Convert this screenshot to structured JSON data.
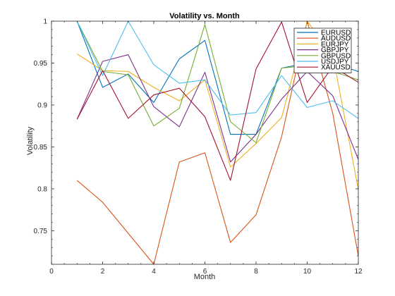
{
  "chart_data": {
    "type": "line",
    "title": "Volatility vs. Month",
    "xlabel": "Month",
    "ylabel": "Volatility",
    "xlim": [
      0,
      12
    ],
    "ylim": [
      0.71,
      1.0
    ],
    "xticks": [
      0,
      2,
      4,
      6,
      8,
      10,
      12
    ],
    "yticks": [
      0.75,
      0.8,
      0.85,
      0.9,
      0.95,
      1
    ],
    "xtick_labels": [
      "0",
      "2",
      "4",
      "6",
      "8",
      "10",
      "12"
    ],
    "ytick_labels": [
      "0.75",
      "0.8",
      "0.85",
      "0.9",
      "0.95",
      "1"
    ],
    "grid": false,
    "legend_position": "top-right",
    "x": [
      1,
      2,
      3,
      4,
      5,
      6,
      7,
      8,
      9,
      10,
      11,
      12
    ],
    "series": [
      {
        "name": "EURUSD",
        "color": "#0072bd",
        "values": [
          1.0,
          0.921,
          0.937,
          0.903,
          0.955,
          0.977,
          0.865,
          0.865,
          0.944,
          0.95,
          0.95,
          0.94
        ]
      },
      {
        "name": "AUDUSD",
        "color": "#d95319",
        "values": [
          0.81,
          0.784,
          0.747,
          0.71,
          0.832,
          0.843,
          0.736,
          0.769,
          0.862,
          1.0,
          0.89,
          0.72
        ]
      },
      {
        "name": "EURJPY",
        "color": "#edb120",
        "values": [
          0.961,
          0.941,
          0.94,
          0.921,
          0.905,
          0.93,
          0.826,
          0.854,
          0.885,
          1.0,
          0.96,
          0.799
        ]
      },
      {
        "name": "GBPJPY",
        "color": "#7e2f8e",
        "values": [
          0.883,
          0.952,
          0.96,
          0.898,
          0.874,
          0.939,
          0.832,
          0.865,
          0.907,
          0.94,
          0.911,
          0.835
        ]
      },
      {
        "name": "GBPUSD",
        "color": "#77ac30",
        "values": [
          1.0,
          0.94,
          0.936,
          0.875,
          0.896,
          0.996,
          0.88,
          0.855,
          0.944,
          0.947,
          0.94,
          0.93
        ]
      },
      {
        "name": "USDJPY",
        "color": "#4dbeee",
        "values": [
          1.0,
          0.935,
          1.0,
          0.948,
          0.926,
          0.93,
          0.888,
          0.891,
          0.935,
          0.897,
          0.905,
          0.884
        ]
      },
      {
        "name": "XAUUSD",
        "color": "#a2142f",
        "values": [
          0.883,
          0.941,
          0.884,
          0.912,
          0.92,
          0.886,
          0.81,
          0.943,
          0.999,
          0.903,
          0.946,
          0.927
        ]
      }
    ]
  }
}
